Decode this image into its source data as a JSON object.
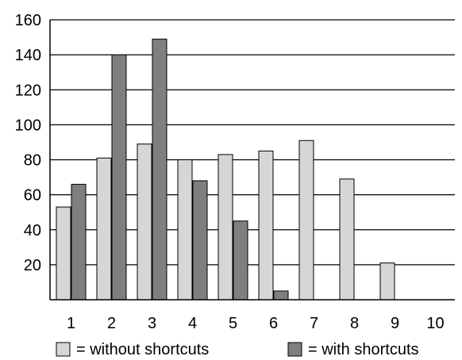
{
  "chart_data": {
    "type": "bar",
    "categories": [
      "1",
      "2",
      "3",
      "4",
      "5",
      "6",
      "7",
      "8",
      "9",
      "10"
    ],
    "series": [
      {
        "name": "= without shortcuts",
        "values": [
          53,
          81,
          89,
          80,
          83,
          85,
          91,
          69,
          21,
          0
        ]
      },
      {
        "name": "= with shortcuts",
        "values": [
          66,
          140,
          149,
          68,
          45,
          5,
          0,
          0,
          0,
          0
        ]
      }
    ],
    "yticks": [
      "20",
      "40",
      "60",
      "80",
      "100",
      "120",
      "140",
      "160"
    ],
    "ylim": [
      0,
      160
    ],
    "grid": true,
    "legend_position": "bottom",
    "colors": {
      "without": "#d6d6d6",
      "with": "#7f7f7f",
      "axis": "#000000"
    }
  }
}
